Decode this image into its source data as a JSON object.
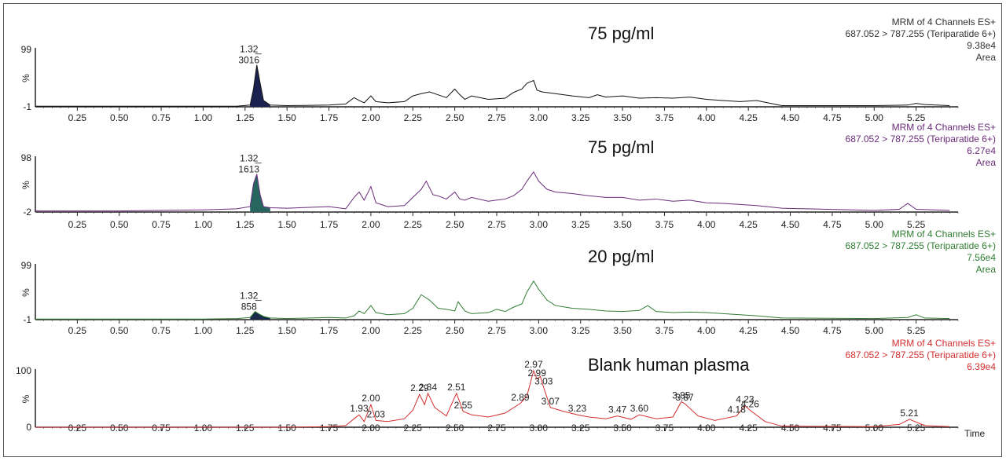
{
  "chart_data": [
    {
      "type": "line",
      "title": "75 pg/ml",
      "header": [
        "MRM of 4 Channels ES+",
        "687.052 > 787.255 (Teriparatide 6+)",
        "9.38e4",
        "Area"
      ],
      "color": "#111111",
      "peak_fill": "#1c2250",
      "ylabels": [
        "99",
        "%",
        "-1"
      ],
      "xlim": [
        0.0,
        5.5
      ],
      "ylim": [
        -1,
        99
      ],
      "peak_annotation": {
        "rt": "1.32",
        "area": "3016",
        "x": 1.32
      },
      "x": [
        0.0,
        0.5,
        1.0,
        1.2,
        1.28,
        1.3,
        1.32,
        1.34,
        1.36,
        1.4,
        1.5,
        1.75,
        1.85,
        1.9,
        1.93,
        1.96,
        2.0,
        2.03,
        2.1,
        2.2,
        2.25,
        2.3,
        2.35,
        2.4,
        2.45,
        2.5,
        2.53,
        2.56,
        2.6,
        2.7,
        2.8,
        2.85,
        2.9,
        2.93,
        2.97,
        2.99,
        3.02,
        3.1,
        3.2,
        3.3,
        3.35,
        3.4,
        3.5,
        3.6,
        3.7,
        3.8,
        3.9,
        4.0,
        4.1,
        4.2,
        4.3,
        4.4,
        4.45,
        5.0,
        5.2,
        5.25,
        5.3,
        5.45
      ],
      "y": [
        0,
        0,
        0,
        0,
        2,
        30,
        72,
        40,
        10,
        2,
        1,
        2,
        4,
        15,
        10,
        6,
        18,
        8,
        6,
        8,
        18,
        22,
        25,
        20,
        15,
        30,
        20,
        12,
        18,
        12,
        14,
        24,
        30,
        40,
        45,
        28,
        25,
        22,
        18,
        15,
        20,
        16,
        18,
        14,
        15,
        14,
        16,
        12,
        10,
        8,
        10,
        4,
        1,
        1,
        2,
        5,
        3,
        1
      ]
    },
    {
      "type": "line",
      "title": "75 pg/ml",
      "header": [
        "MRM of 4 Channels ES+",
        "687.052 > 787.255 (Teriparatide 6+)",
        "6.27e4",
        "Area"
      ],
      "color": "#6a2c7a",
      "peak_fill": "#26665e",
      "ylabels": [
        "98",
        "%",
        "-2"
      ],
      "xlim": [
        0.0,
        5.5
      ],
      "ylim": [
        -2,
        98
      ],
      "peak_annotation": {
        "rt": "1.32",
        "area": "1613",
        "x": 1.32
      },
      "x": [
        0.0,
        0.5,
        1.0,
        1.2,
        1.28,
        1.3,
        1.32,
        1.34,
        1.36,
        1.4,
        1.5,
        1.75,
        1.85,
        1.9,
        1.93,
        1.96,
        2.0,
        2.03,
        2.1,
        2.2,
        2.25,
        2.3,
        2.33,
        2.37,
        2.4,
        2.45,
        2.5,
        2.53,
        2.56,
        2.6,
        2.7,
        2.8,
        2.85,
        2.9,
        2.93,
        2.97,
        3.0,
        3.05,
        3.1,
        3.2,
        3.3,
        3.4,
        3.5,
        3.6,
        3.7,
        3.8,
        3.9,
        4.0,
        4.1,
        4.2,
        4.3,
        4.45,
        5.0,
        5.15,
        5.2,
        5.25,
        5.45
      ],
      "y": [
        0,
        0,
        2,
        4,
        8,
        50,
        68,
        30,
        8,
        6,
        5,
        8,
        4,
        25,
        35,
        20,
        45,
        15,
        8,
        10,
        25,
        40,
        55,
        30,
        28,
        22,
        35,
        22,
        20,
        25,
        18,
        22,
        28,
        40,
        55,
        72,
        55,
        40,
        35,
        32,
        28,
        25,
        25,
        20,
        22,
        18,
        20,
        15,
        14,
        12,
        10,
        5,
        1,
        3,
        14,
        3,
        1
      ]
    },
    {
      "type": "line",
      "title": "20 pg/ml",
      "header": [
        "MRM of 4 Channels ES+",
        "687.052 > 787.255 (Teriparatide 6+)",
        "7.56e4",
        "Area"
      ],
      "color": "#2e7d32",
      "peak_fill": "#1a2a48",
      "ylabels": [
        "99",
        "%",
        "-1"
      ],
      "xlim": [
        0.0,
        5.5
      ],
      "ylim": [
        -1,
        99
      ],
      "peak_annotation": {
        "rt": "1.32",
        "area": "858",
        "x": 1.32
      },
      "x": [
        0.0,
        0.5,
        1.0,
        1.2,
        1.28,
        1.31,
        1.33,
        1.36,
        1.4,
        1.5,
        1.75,
        1.85,
        1.9,
        1.93,
        1.96,
        2.0,
        2.03,
        2.1,
        2.2,
        2.25,
        2.3,
        2.35,
        2.4,
        2.45,
        2.5,
        2.52,
        2.56,
        2.6,
        2.7,
        2.75,
        2.8,
        2.85,
        2.9,
        2.93,
        2.97,
        3.0,
        3.05,
        3.1,
        3.2,
        3.3,
        3.4,
        3.5,
        3.6,
        3.65,
        3.7,
        3.8,
        3.9,
        4.0,
        4.1,
        4.2,
        4.3,
        4.45,
        5.0,
        5.2,
        5.25,
        5.3,
        5.45
      ],
      "y": [
        0,
        0,
        0,
        1,
        3,
        14,
        10,
        5,
        2,
        1,
        3,
        2,
        6,
        15,
        10,
        25,
        12,
        8,
        10,
        20,
        45,
        35,
        20,
        18,
        15,
        32,
        15,
        10,
        12,
        18,
        14,
        22,
        28,
        50,
        70,
        55,
        35,
        25,
        20,
        18,
        15,
        14,
        16,
        25,
        14,
        12,
        13,
        12,
        10,
        8,
        6,
        2,
        1,
        3,
        8,
        2,
        1
      ]
    },
    {
      "type": "line",
      "title": "Blank human plasma",
      "header": [
        "MRM of 4 Channels ES+",
        "687.052 > 787.255 (Teriparatide 6+)",
        "6.39e4"
      ],
      "color": "#d32f2f",
      "peak_fill": "",
      "ylabels": [
        "100",
        "%",
        "0"
      ],
      "xlabel": "Time",
      "xlim": [
        0.0,
        5.5
      ],
      "ylim": [
        0,
        100
      ],
      "peak_labels": [
        {
          "x": 1.93,
          "label": "1.93"
        },
        {
          "x": 2.0,
          "label": "2.00"
        },
        {
          "x": 2.03,
          "label": "2.03"
        },
        {
          "x": 2.29,
          "label": "2.29"
        },
        {
          "x": 2.34,
          "label": "2.34"
        },
        {
          "x": 2.51,
          "label": "2.51"
        },
        {
          "x": 2.55,
          "label": "2.55"
        },
        {
          "x": 2.89,
          "label": "2.89"
        },
        {
          "x": 2.97,
          "label": "2.97"
        },
        {
          "x": 2.99,
          "label": "2.99"
        },
        {
          "x": 3.03,
          "label": "3.03"
        },
        {
          "x": 3.07,
          "label": "3.07"
        },
        {
          "x": 3.23,
          "label": "3.23"
        },
        {
          "x": 3.47,
          "label": "3.47"
        },
        {
          "x": 3.6,
          "label": "3.60"
        },
        {
          "x": 3.85,
          "label": "3.85"
        },
        {
          "x": 3.87,
          "label": "3.87"
        },
        {
          "x": 4.18,
          "label": "4.18"
        },
        {
          "x": 4.23,
          "label": "4.23"
        },
        {
          "x": 4.26,
          "label": "4.26"
        },
        {
          "x": 5.21,
          "label": "5.21"
        }
      ],
      "x": [
        0.0,
        0.5,
        1.0,
        1.5,
        1.75,
        1.85,
        1.9,
        1.93,
        1.96,
        2.0,
        2.03,
        2.1,
        2.2,
        2.25,
        2.29,
        2.32,
        2.34,
        2.38,
        2.45,
        2.51,
        2.55,
        2.6,
        2.7,
        2.8,
        2.89,
        2.93,
        2.97,
        2.99,
        3.01,
        3.03,
        3.07,
        3.15,
        3.23,
        3.3,
        3.4,
        3.47,
        3.55,
        3.6,
        3.7,
        3.8,
        3.85,
        3.87,
        3.95,
        4.05,
        4.18,
        4.23,
        4.26,
        4.35,
        4.45,
        5.0,
        5.15,
        5.21,
        5.3,
        5.45
      ],
      "y": [
        0,
        0,
        0,
        0,
        1,
        3,
        15,
        22,
        10,
        40,
        12,
        10,
        15,
        30,
        58,
        40,
        60,
        35,
        20,
        60,
        28,
        22,
        18,
        25,
        42,
        55,
        100,
        85,
        90,
        70,
        35,
        28,
        22,
        18,
        15,
        20,
        14,
        22,
        15,
        18,
        45,
        42,
        20,
        12,
        20,
        38,
        30,
        10,
        2,
        1,
        5,
        14,
        3,
        1
      ]
    }
  ],
  "axis": {
    "ticks": [
      "0.25",
      "0.50",
      "0.75",
      "1.00",
      "1.25",
      "1.50",
      "1.75",
      "2.00",
      "2.25",
      "2.50",
      "2.75",
      "3.00",
      "3.25",
      "3.50",
      "3.75",
      "4.00",
      "4.25",
      "4.50",
      "4.75",
      "5.00",
      "5.25"
    ],
    "tick_values": [
      0.25,
      0.5,
      0.75,
      1.0,
      1.25,
      1.5,
      1.75,
      2.0,
      2.25,
      2.5,
      2.75,
      3.0,
      3.25,
      3.5,
      3.75,
      4.0,
      4.25,
      4.5,
      4.75,
      5.0,
      5.25
    ]
  }
}
